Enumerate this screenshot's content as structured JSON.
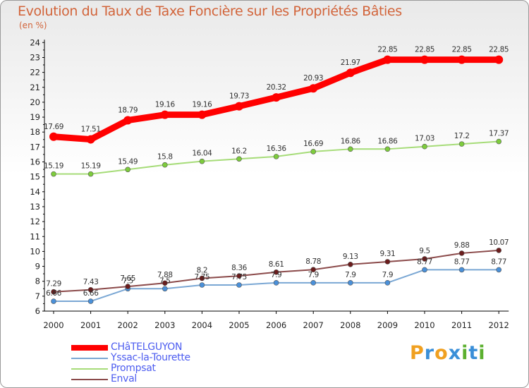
{
  "title": "Evolution du Taux de Taxe Foncière sur les Propriétés Bâties",
  "unit_label": "(en %)",
  "brand": {
    "text": "Proxiti",
    "colors": [
      "#f0a020",
      "#3a8fd8",
      "#f0a020",
      "#3a8fd8",
      "#5cb030",
      "#3a8fd8",
      "#5cb030"
    ]
  },
  "chart_data": {
    "type": "line",
    "title": "Evolution du Taux de Taxe Foncière sur les Propriétés Bâties",
    "ylabel": "(en %)",
    "xlabel": "",
    "x": [
      "2000",
      "2001",
      "2002",
      "2003",
      "2004",
      "2005",
      "2006",
      "2007",
      "2008",
      "2009",
      "2010",
      "2011",
      "2012"
    ],
    "ylim": [
      6,
      24
    ],
    "yticks": [
      6,
      7,
      8,
      9,
      10,
      11,
      12,
      13,
      14,
      15,
      16,
      17,
      18,
      19,
      20,
      21,
      22,
      23,
      24
    ],
    "grid": false,
    "legend": "bottom-left",
    "series": [
      {
        "name": "CHâTELGUYON",
        "color": "#ff0000",
        "marker_color": "#ff0000",
        "values": [
          17.69,
          17.51,
          18.79,
          19.16,
          19.16,
          19.73,
          20.32,
          20.93,
          21.97,
          22.85,
          22.85,
          22.85,
          22.85
        ],
        "labels": [
          "17.69",
          "17.51",
          "18.79",
          "19.16",
          "19.16",
          "19.73",
          "20.32",
          "20.93",
          "21.97",
          "22.85",
          "22.85",
          "22.85",
          "22.85"
        ]
      },
      {
        "name": "Yssac-la-Tourette",
        "color": "#7aa7d4",
        "marker_color": "#4a90d9",
        "values": [
          6.66,
          6.66,
          7.5,
          7.5,
          7.75,
          7.75,
          7.9,
          7.9,
          7.9,
          7.9,
          8.77,
          8.77,
          8.77
        ],
        "labels": [
          "6.66",
          "6.66",
          "7.5",
          "7.5",
          "7.75",
          "7.75",
          "7.9",
          "7.9",
          "7.9",
          "7.9",
          "8.77",
          "8.77",
          "8.77"
        ]
      },
      {
        "name": "Prompsat",
        "color": "#a6dc78",
        "marker_color": "#7dcc3c",
        "values": [
          15.19,
          15.19,
          15.49,
          15.8,
          16.04,
          16.2,
          16.36,
          16.69,
          16.86,
          16.86,
          17.03,
          17.2,
          17.37
        ],
        "labels": [
          "15.19",
          "15.19",
          "15.49",
          "15.8",
          "16.04",
          "16.2",
          "16.36",
          "16.69",
          "16.86",
          "16.86",
          "17.03",
          "17.2",
          "17.37"
        ]
      },
      {
        "name": "Enval",
        "color": "#8b4a4a",
        "marker_color": "#6b1c1c",
        "values": [
          7.29,
          7.43,
          7.65,
          7.88,
          8.2,
          8.36,
          8.61,
          8.78,
          9.13,
          9.31,
          9.5,
          9.88,
          10.07
        ],
        "labels": [
          "7.29",
          "7.43",
          "7.65",
          "7.88",
          "8.2",
          "8.36",
          "8.61",
          "8.78",
          "9.13",
          "9.31",
          "9.5",
          "9.88",
          "10.07"
        ]
      }
    ]
  }
}
